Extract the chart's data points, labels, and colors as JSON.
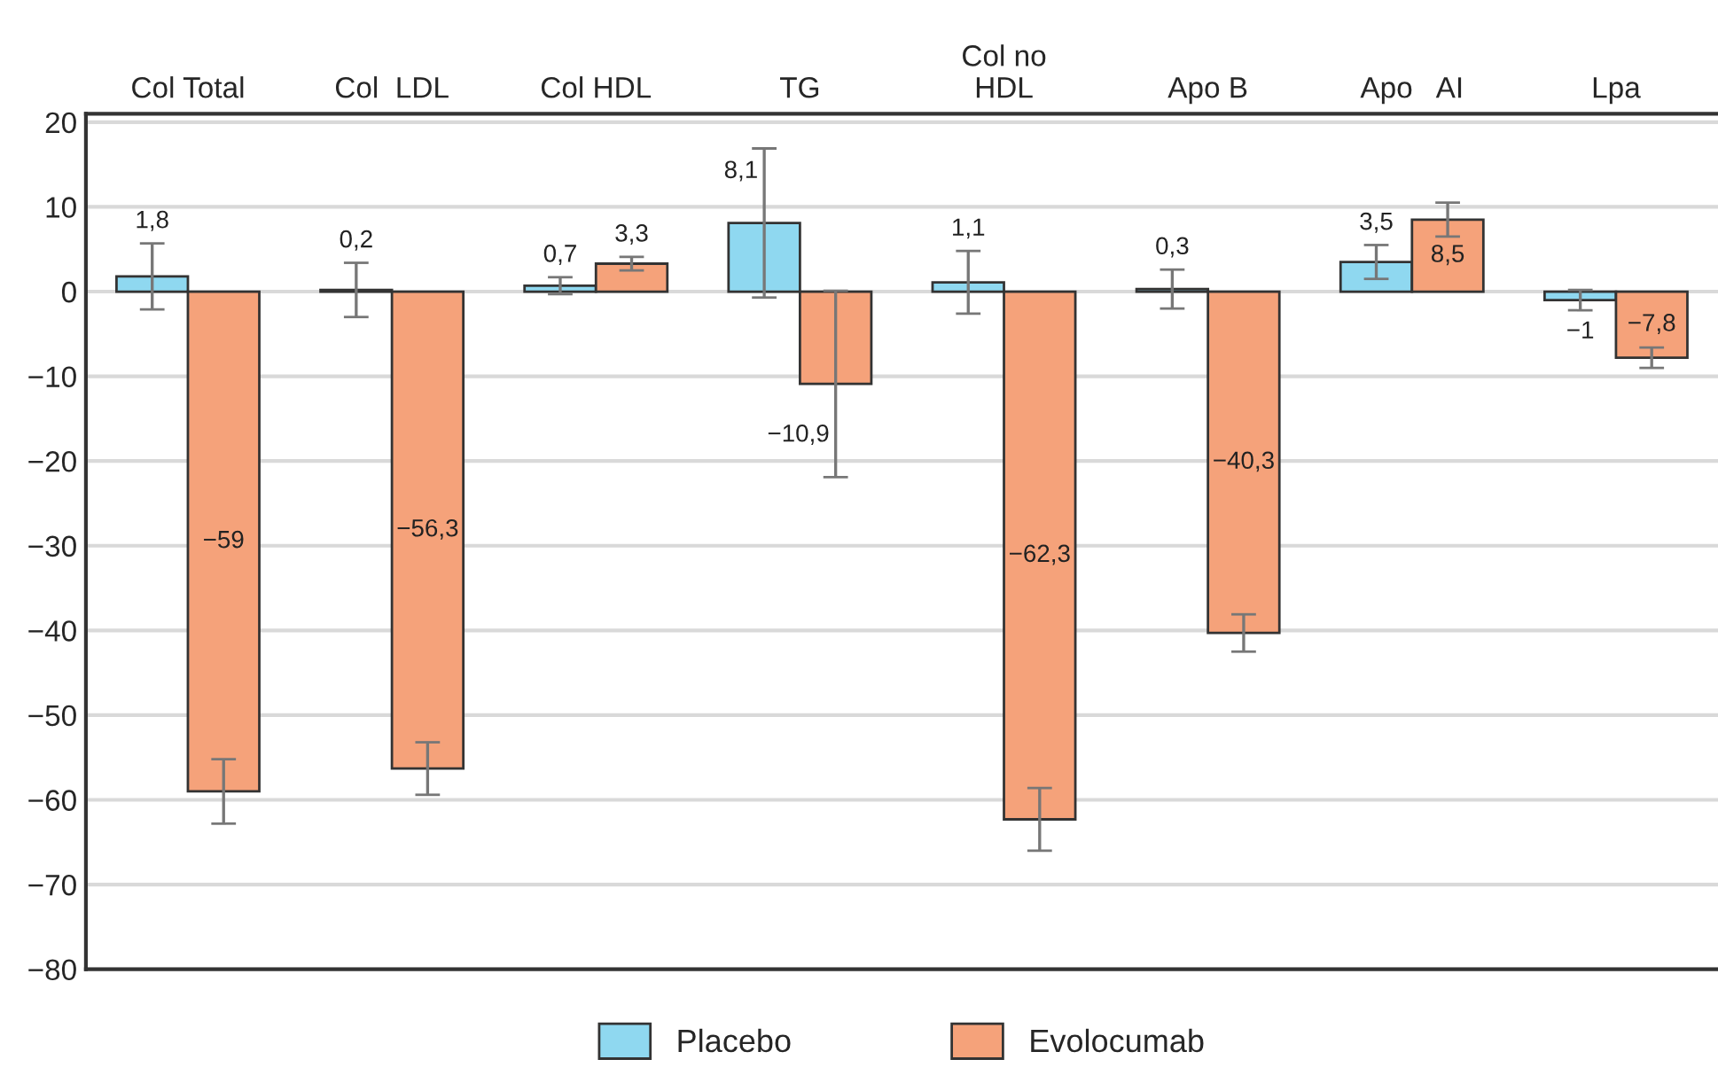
{
  "chart_data": {
    "type": "bar",
    "categories": [
      "Col Total",
      "Col  LDL",
      "Col HDL",
      "TG",
      "Col no\nHDL",
      "Apo B",
      "Apo   AI",
      "Lpa"
    ],
    "series": [
      {
        "name": "Placebo",
        "color": "#8fd8f0",
        "values": [
          1.8,
          0.2,
          0.7,
          8.1,
          1.1,
          0.3,
          3.5,
          -1
        ],
        "errors": [
          3.9,
          3.2,
          1.0,
          8.8,
          3.7,
          2.3,
          2.0,
          1.2
        ],
        "value_labels": [
          "1,8",
          "0,2",
          "0,7",
          "8,1",
          "1,1",
          "0,3",
          "3,5",
          "−1"
        ]
      },
      {
        "name": "Evolocumab",
        "color": "#f5a27a",
        "values": [
          -59,
          -56.3,
          3.3,
          -10.9,
          -62.3,
          -40.3,
          8.5,
          -7.8
        ],
        "errors": [
          3.8,
          3.1,
          0.8,
          11.0,
          3.7,
          2.2,
          2.0,
          1.2
        ],
        "value_labels": [
          "−59",
          "−56,3",
          "3,3",
          "−10,9",
          "−62,3",
          "−40,3",
          "8,5",
          "−7,8"
        ]
      }
    ],
    "ylim": [
      -80,
      21
    ],
    "yticks": [
      {
        "value": 20,
        "label": "20"
      },
      {
        "value": 10,
        "label": "10"
      },
      {
        "value": 0,
        "label": "0"
      },
      {
        "value": -10,
        "label": "−10"
      },
      {
        "value": -20,
        "label": "−20"
      },
      {
        "value": -30,
        "label": "−30"
      },
      {
        "value": -40,
        "label": "−40"
      },
      {
        "value": -50,
        "label": "−50"
      },
      {
        "value": -60,
        "label": "−60"
      },
      {
        "value": -70,
        "label": "−70"
      },
      {
        "value": -80,
        "label": "−80"
      }
    ],
    "grid": "y",
    "legend": "bottom"
  }
}
